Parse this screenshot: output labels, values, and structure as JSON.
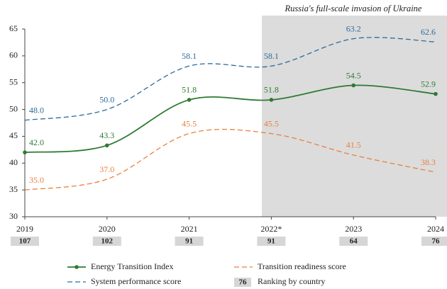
{
  "chart_data": {
    "type": "line",
    "annotation": "Russia's full-scale invasion of Ukraine",
    "categories": [
      "2019",
      "2020",
      "2021",
      "2022*",
      "2023",
      "2024"
    ],
    "rankings": [
      107,
      102,
      91,
      91,
      64,
      76
    ],
    "series": [
      {
        "name": "Energy Transition Index",
        "color": "#2e7a32",
        "dash": false,
        "markers": true,
        "values": [
          42.0,
          43.3,
          51.8,
          51.8,
          54.5,
          52.9
        ],
        "value_labels": [
          "42.0",
          "43.3",
          "51.8",
          "51.8",
          "54.5",
          "52.9"
        ]
      },
      {
        "name": "Transition readiness score",
        "color": "#e8803f",
        "dash": true,
        "markers": false,
        "values": [
          35.0,
          37.0,
          45.5,
          45.5,
          41.5,
          38.3
        ],
        "value_labels": [
          "35.0",
          "37.0",
          "45.5",
          "45.5",
          "41.5",
          "38.3"
        ]
      },
      {
        "name": "System performance score",
        "color": "#2d6a99",
        "dash": true,
        "markers": false,
        "values": [
          48.0,
          50.0,
          58.1,
          58.1,
          63.2,
          62.6
        ],
        "value_labels": [
          "48.0",
          "50.0",
          "58.1",
          "58.1",
          "63.2",
          "62.6"
        ]
      }
    ],
    "rank_legend_sample": "76",
    "rank_legend_label": "Ranking by country",
    "ylim": [
      30,
      65
    ],
    "yticks": [
      30,
      35,
      40,
      45,
      50,
      55,
      60,
      65
    ],
    "grid": false
  }
}
